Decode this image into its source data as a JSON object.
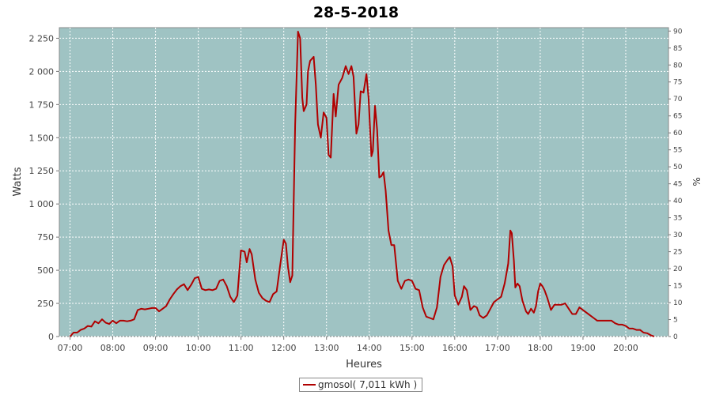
{
  "chart_data": {
    "type": "line",
    "title": "28-5-2018",
    "xlabel": "Heures",
    "ylabel": "Watts",
    "y2label": "%",
    "x_ticks": [
      "07:00",
      "08:00",
      "09:00",
      "10:00",
      "11:00",
      "12:00",
      "13:00",
      "14:00",
      "15:00",
      "16:00",
      "17:00",
      "18:00",
      "19:00",
      "20:00"
    ],
    "y_ticks": [
      "0",
      "250",
      "500",
      "750",
      "1 000",
      "1 250",
      "1 500",
      "1 750",
      "2 000",
      "2 250"
    ],
    "y2_ticks": [
      "0",
      "5",
      "10",
      "15",
      "20",
      "25",
      "30",
      "35",
      "40",
      "45",
      "50",
      "55",
      "60",
      "65",
      "70",
      "75",
      "80",
      "85",
      "90"
    ],
    "xlim": [
      "06:45",
      "21:00"
    ],
    "ylim": [
      0,
      2330
    ],
    "y2lim": [
      0,
      91
    ],
    "grid": true,
    "plot_background": "#9fc3c3",
    "series_color": "#b00000",
    "legend_position": "bottom-center",
    "legend_label": "gmosol( 7,011 kWh )",
    "series": [
      {
        "name": "gmosol( 7,011 kWh )",
        "points": [
          [
            "07:00",
            0
          ],
          [
            "07:05",
            30
          ],
          [
            "07:10",
            30
          ],
          [
            "07:15",
            50
          ],
          [
            "07:20",
            60
          ],
          [
            "07:25",
            80
          ],
          [
            "07:30",
            75
          ],
          [
            "07:35",
            115
          ],
          [
            "07:40",
            100
          ],
          [
            "07:45",
            130
          ],
          [
            "07:50",
            105
          ],
          [
            "07:55",
            95
          ],
          [
            "08:00",
            120
          ],
          [
            "08:05",
            100
          ],
          [
            "08:10",
            120
          ],
          [
            "08:15",
            120
          ],
          [
            "08:20",
            115
          ],
          [
            "08:25",
            120
          ],
          [
            "08:30",
            130
          ],
          [
            "08:35",
            200
          ],
          [
            "08:40",
            210
          ],
          [
            "08:45",
            205
          ],
          [
            "08:50",
            210
          ],
          [
            "08:55",
            215
          ],
          [
            "09:00",
            215
          ],
          [
            "09:05",
            190
          ],
          [
            "09:10",
            210
          ],
          [
            "09:15",
            230
          ],
          [
            "09:20",
            280
          ],
          [
            "09:25",
            320
          ],
          [
            "09:30",
            355
          ],
          [
            "09:35",
            380
          ],
          [
            "09:40",
            395
          ],
          [
            "09:45",
            350
          ],
          [
            "09:50",
            390
          ],
          [
            "09:55",
            440
          ],
          [
            "10:00",
            450
          ],
          [
            "10:05",
            360
          ],
          [
            "10:10",
            350
          ],
          [
            "10:15",
            355
          ],
          [
            "10:20",
            350
          ],
          [
            "10:25",
            360
          ],
          [
            "10:30",
            420
          ],
          [
            "10:35",
            430
          ],
          [
            "10:40",
            380
          ],
          [
            "10:45",
            300
          ],
          [
            "10:50",
            260
          ],
          [
            "10:55",
            310
          ],
          [
            "11:00",
            650
          ],
          [
            "11:05",
            640
          ],
          [
            "11:08",
            560
          ],
          [
            "11:12",
            660
          ],
          [
            "11:15",
            620
          ],
          [
            "11:20",
            430
          ],
          [
            "11:25",
            330
          ],
          [
            "11:30",
            290
          ],
          [
            "11:35",
            270
          ],
          [
            "11:40",
            260
          ],
          [
            "11:45",
            320
          ],
          [
            "11:50",
            340
          ],
          [
            "11:55",
            540
          ],
          [
            "12:00",
            730
          ],
          [
            "12:03",
            700
          ],
          [
            "12:06",
            520
          ],
          [
            "12:09",
            410
          ],
          [
            "12:12",
            460
          ],
          [
            "12:16",
            1600
          ],
          [
            "12:20",
            2300
          ],
          [
            "12:23",
            2250
          ],
          [
            "12:26",
            1800
          ],
          [
            "12:28",
            1700
          ],
          [
            "12:32",
            1750
          ],
          [
            "12:34",
            2000
          ],
          [
            "12:37",
            2080
          ],
          [
            "12:42",
            2110
          ],
          [
            "12:45",
            1900
          ],
          [
            "12:48",
            1600
          ],
          [
            "12:52",
            1500
          ],
          [
            "12:56",
            1690
          ],
          [
            "13:00",
            1650
          ],
          [
            "13:03",
            1370
          ],
          [
            "13:06",
            1350
          ],
          [
            "13:10",
            1830
          ],
          [
            "13:13",
            1660
          ],
          [
            "13:17",
            1900
          ],
          [
            "13:22",
            1950
          ],
          [
            "13:27",
            2040
          ],
          [
            "13:31",
            1980
          ],
          [
            "13:35",
            2040
          ],
          [
            "13:38",
            1960
          ],
          [
            "13:42",
            1530
          ],
          [
            "13:45",
            1600
          ],
          [
            "13:48",
            1850
          ],
          [
            "13:52",
            1840
          ],
          [
            "13:56",
            1980
          ],
          [
            "13:59",
            1800
          ],
          [
            "14:03",
            1360
          ],
          [
            "14:05",
            1400
          ],
          [
            "14:08",
            1740
          ],
          [
            "14:11",
            1560
          ],
          [
            "14:14",
            1200
          ],
          [
            "14:17",
            1210
          ],
          [
            "14:20",
            1240
          ],
          [
            "14:23",
            1100
          ],
          [
            "14:27",
            800
          ],
          [
            "14:31",
            690
          ],
          [
            "14:35",
            690
          ],
          [
            "14:40",
            420
          ],
          [
            "14:45",
            360
          ],
          [
            "14:50",
            420
          ],
          [
            "14:55",
            430
          ],
          [
            "15:00",
            420
          ],
          [
            "15:05",
            360
          ],
          [
            "15:10",
            350
          ],
          [
            "15:15",
            220
          ],
          [
            "15:20",
            150
          ],
          [
            "15:25",
            140
          ],
          [
            "15:30",
            130
          ],
          [
            "15:35",
            220
          ],
          [
            "15:40",
            450
          ],
          [
            "15:45",
            540
          ],
          [
            "15:50",
            580
          ],
          [
            "15:53",
            600
          ],
          [
            "15:57",
            530
          ],
          [
            "16:00",
            310
          ],
          [
            "16:05",
            240
          ],
          [
            "16:10",
            300
          ],
          [
            "16:13",
            380
          ],
          [
            "16:17",
            350
          ],
          [
            "16:22",
            200
          ],
          [
            "16:27",
            230
          ],
          [
            "16:31",
            220
          ],
          [
            "16:35",
            160
          ],
          [
            "16:40",
            140
          ],
          [
            "16:45",
            160
          ],
          [
            "16:50",
            210
          ],
          [
            "16:55",
            260
          ],
          [
            "17:00",
            280
          ],
          [
            "17:05",
            300
          ],
          [
            "17:10",
            400
          ],
          [
            "17:15",
            550
          ],
          [
            "17:18",
            800
          ],
          [
            "17:20",
            780
          ],
          [
            "17:23",
            570
          ],
          [
            "17:25",
            370
          ],
          [
            "17:28",
            400
          ],
          [
            "17:31",
            380
          ],
          [
            "17:35",
            270
          ],
          [
            "17:40",
            190
          ],
          [
            "17:43",
            170
          ],
          [
            "17:47",
            210
          ],
          [
            "17:51",
            180
          ],
          [
            "17:54",
            230
          ],
          [
            "17:57",
            340
          ],
          [
            "18:00",
            400
          ],
          [
            "18:03",
            380
          ],
          [
            "18:06",
            350
          ],
          [
            "18:10",
            290
          ],
          [
            "18:15",
            200
          ],
          [
            "18:20",
            240
          ],
          [
            "18:25",
            240
          ],
          [
            "18:30",
            240
          ],
          [
            "18:35",
            250
          ],
          [
            "18:40",
            210
          ],
          [
            "18:45",
            170
          ],
          [
            "18:50",
            170
          ],
          [
            "18:55",
            220
          ],
          [
            "19:00",
            200
          ],
          [
            "19:05",
            180
          ],
          [
            "19:10",
            160
          ],
          [
            "19:15",
            140
          ],
          [
            "19:20",
            120
          ],
          [
            "19:25",
            120
          ],
          [
            "19:30",
            120
          ],
          [
            "19:35",
            120
          ],
          [
            "19:40",
            120
          ],
          [
            "19:45",
            100
          ],
          [
            "19:50",
            90
          ],
          [
            "19:55",
            90
          ],
          [
            "20:00",
            80
          ],
          [
            "20:05",
            60
          ],
          [
            "20:10",
            60
          ],
          [
            "20:15",
            50
          ],
          [
            "20:20",
            50
          ],
          [
            "20:25",
            30
          ],
          [
            "20:30",
            25
          ],
          [
            "20:35",
            10
          ],
          [
            "20:40",
            0
          ]
        ]
      }
    ]
  }
}
